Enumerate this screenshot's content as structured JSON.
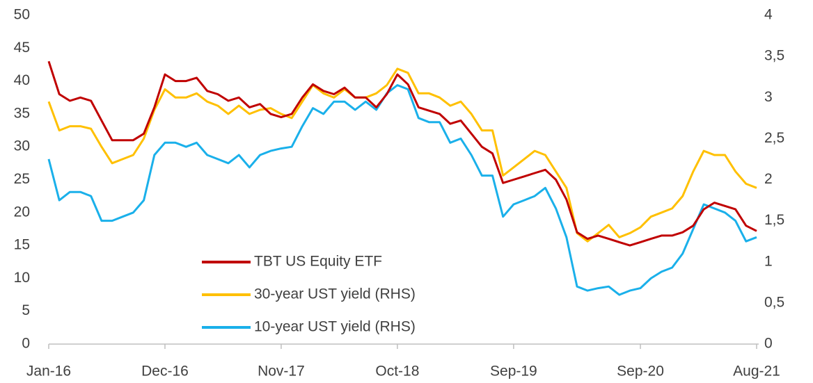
{
  "chart_data": {
    "type": "line",
    "categories": [
      "Jan-16",
      null,
      null,
      null,
      null,
      null,
      null,
      null,
      null,
      null,
      null,
      "Dec-16",
      null,
      null,
      null,
      null,
      null,
      null,
      null,
      null,
      null,
      null,
      "Nov-17",
      null,
      null,
      null,
      null,
      null,
      null,
      null,
      null,
      null,
      null,
      "Oct-18",
      null,
      null,
      null,
      null,
      null,
      null,
      null,
      null,
      null,
      null,
      "Sep-19",
      null,
      null,
      null,
      null,
      null,
      null,
      null,
      null,
      null,
      null,
      null,
      "Sep-20",
      null,
      null,
      null,
      null,
      null,
      null,
      null,
      null,
      null,
      null,
      "Aug-21"
    ],
    "series": [
      {
        "name": "TBT US Equity ETF",
        "color": "#c00000",
        "values": [
          43,
          38,
          37,
          37.5,
          37,
          34,
          31,
          31,
          31,
          32,
          36,
          41,
          40,
          40,
          40.5,
          38.5,
          38,
          37,
          37.5,
          36,
          36.5,
          35,
          34.5,
          35,
          37.5,
          39.5,
          38.5,
          38,
          39,
          37.5,
          37.5,
          36,
          38,
          41,
          39.5,
          36,
          35.5,
          35,
          33.5,
          34,
          32,
          30,
          29,
          24.5,
          25,
          25.5,
          26,
          26.5,
          25,
          22,
          17,
          16,
          16.5,
          16,
          15.5,
          15,
          15.5,
          16,
          16.5,
          16.5,
          17,
          18,
          20.5,
          21.5,
          21,
          20.5,
          18,
          17.2
        ]
      },
      {
        "name": "30-year UST yield (RHS)",
        "color": "#ffc000",
        "axis": "y2",
        "values": [
          2.95,
          2.6,
          2.65,
          2.65,
          2.62,
          2.4,
          2.2,
          2.25,
          2.3,
          2.5,
          2.85,
          3.1,
          3.0,
          3.0,
          3.05,
          2.95,
          2.9,
          2.8,
          2.9,
          2.8,
          2.85,
          2.87,
          2.8,
          2.75,
          2.95,
          3.15,
          3.05,
          3.0,
          3.1,
          3.0,
          3.0,
          3.05,
          3.15,
          3.35,
          3.3,
          3.05,
          3.05,
          3.0,
          2.9,
          2.95,
          2.8,
          2.6,
          2.6,
          2.05,
          2.15,
          2.25,
          2.35,
          2.3,
          2.1,
          1.9,
          1.35,
          1.25,
          1.35,
          1.45,
          1.3,
          1.35,
          1.42,
          1.55,
          1.6,
          1.65,
          1.8,
          2.1,
          2.35,
          2.3,
          2.3,
          2.1,
          1.95,
          1.9
        ]
      },
      {
        "name": "10-year UST yield (RHS)",
        "color": "#1ab0ea",
        "axis": "y2",
        "values": [
          2.25,
          1.75,
          1.85,
          1.85,
          1.8,
          1.5,
          1.5,
          1.55,
          1.6,
          1.75,
          2.3,
          2.45,
          2.45,
          2.4,
          2.45,
          2.3,
          2.25,
          2.2,
          2.3,
          2.15,
          2.3,
          2.35,
          2.38,
          2.4,
          2.65,
          2.87,
          2.8,
          2.95,
          2.95,
          2.85,
          2.95,
          2.85,
          3.05,
          3.15,
          3.1,
          2.75,
          2.7,
          2.7,
          2.45,
          2.5,
          2.3,
          2.05,
          2.05,
          1.55,
          1.7,
          1.75,
          1.8,
          1.9,
          1.65,
          1.3,
          0.7,
          0.65,
          0.68,
          0.7,
          0.6,
          0.65,
          0.68,
          0.8,
          0.88,
          0.93,
          1.1,
          1.4,
          1.7,
          1.65,
          1.6,
          1.5,
          1.25,
          1.3
        ]
      }
    ],
    "ylim": [
      0,
      50
    ],
    "yticks": [
      0,
      5,
      10,
      15,
      20,
      25,
      30,
      35,
      40,
      45,
      50
    ],
    "y2lim": [
      0,
      4
    ],
    "y2ticks": [
      0,
      {
        "value": 0.5,
        "label": "0,5"
      },
      1,
      {
        "value": 1.5,
        "label": "1,5"
      },
      2,
      {
        "value": 2.5,
        "label": "2,5"
      },
      3,
      {
        "value": 3.5,
        "label": "3,5"
      },
      4
    ],
    "legend": "lower center"
  }
}
